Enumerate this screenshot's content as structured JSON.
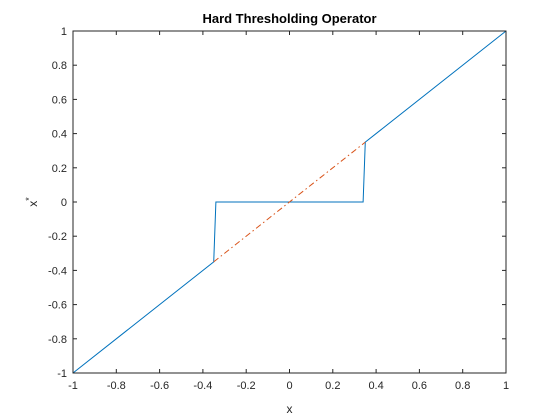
{
  "chart_data": {
    "type": "line",
    "title": "Hard Thresholding Operator",
    "xlabel": "x",
    "ylabel_base": "x",
    "ylabel_sup": "*",
    "xlim": [
      -1,
      1
    ],
    "ylim": [
      -1,
      1
    ],
    "xticks": [
      -1,
      -0.8,
      -0.6,
      -0.4,
      -0.2,
      0,
      0.2,
      0.4,
      0.6,
      0.8,
      1
    ],
    "yticks": [
      -1,
      -0.8,
      -0.6,
      -0.4,
      -0.2,
      0,
      0.2,
      0.4,
      0.6,
      0.8,
      1
    ],
    "xtick_labels": [
      "-1",
      "-0.8",
      "-0.6",
      "-0.4",
      "-0.2",
      "0",
      "0.2",
      "0.4",
      "0.6",
      "0.8",
      "1"
    ],
    "ytick_labels": [
      "-1",
      "-0.8",
      "-0.6",
      "-0.4",
      "-0.2",
      "0",
      "0.2",
      "0.4",
      "0.6",
      "0.8",
      "1"
    ],
    "grid": false,
    "series": [
      {
        "style": "solid",
        "color": "#0072bd",
        "x": [
          -1,
          -0.35,
          -0.34,
          0.34,
          0.35,
          1
        ],
        "y": [
          -1,
          -0.35,
          0,
          0,
          0.35,
          1
        ]
      },
      {
        "style": "dash-dot",
        "color": "#d95319",
        "x": [
          -0.35,
          0.35
        ],
        "y": [
          -0.35,
          0.35
        ]
      }
    ]
  }
}
